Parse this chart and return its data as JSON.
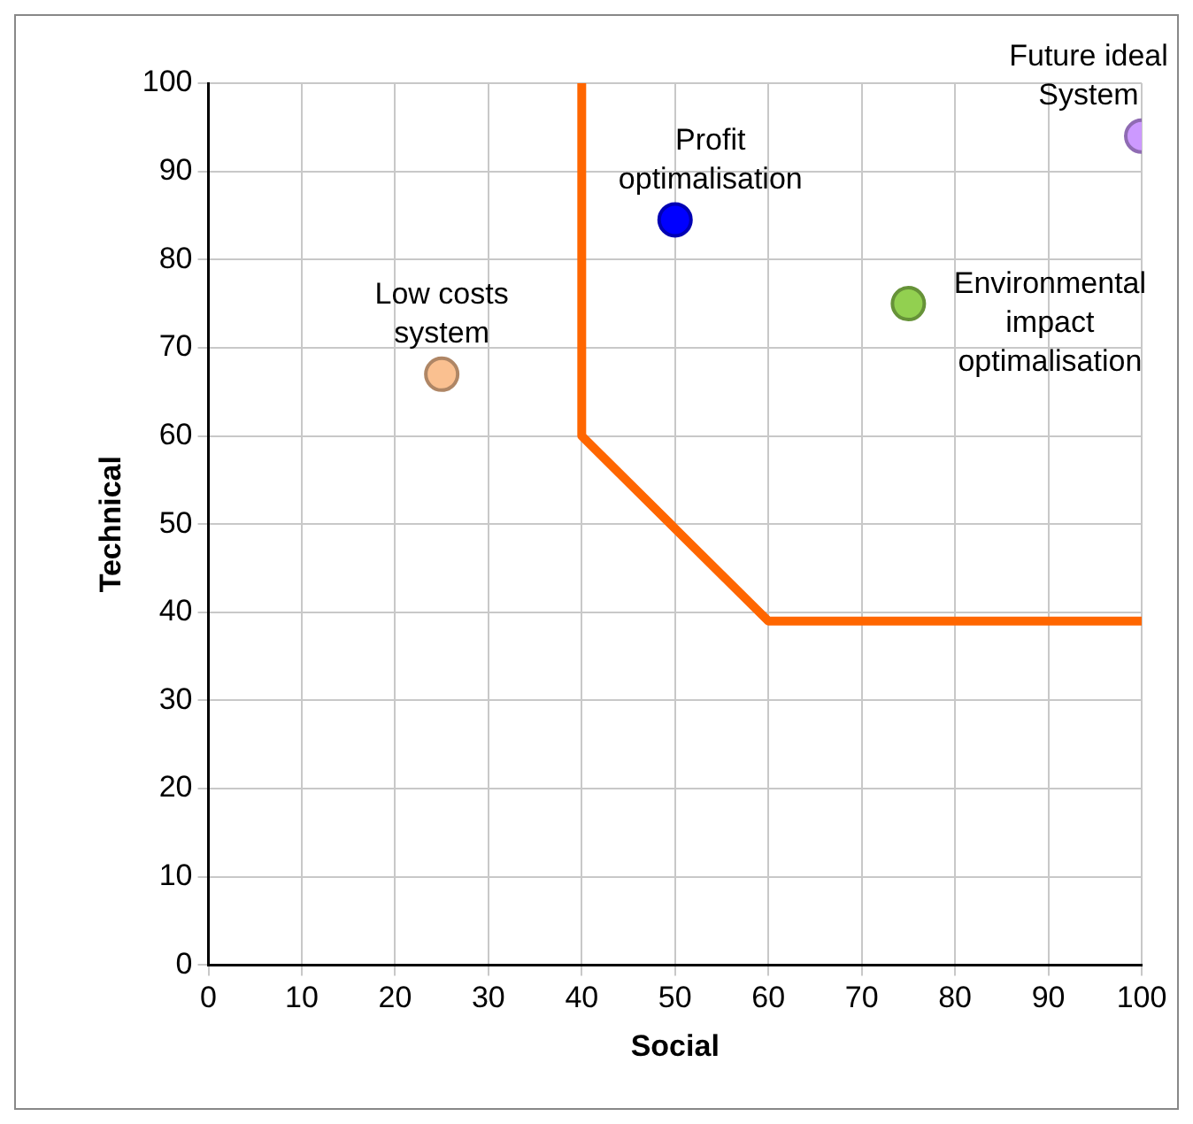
{
  "chart_data": {
    "type": "scatter",
    "xlabel": "Social",
    "ylabel": "Technical",
    "xlim": [
      0,
      100
    ],
    "ylim": [
      0,
      100
    ],
    "xticks": [
      0,
      10,
      20,
      30,
      40,
      50,
      60,
      70,
      80,
      90,
      100
    ],
    "yticks": [
      0,
      10,
      20,
      30,
      40,
      50,
      60,
      70,
      80,
      90,
      100
    ],
    "grid": true,
    "legend": false,
    "marker": "circle",
    "series": [
      {
        "name": "Low costs system",
        "color": "#fac090",
        "x": [
          25
        ],
        "values": [
          67
        ]
      },
      {
        "name": "Profit optimalisation",
        "color": "#0000ff",
        "x": [
          50
        ],
        "values": [
          84.5
        ]
      },
      {
        "name": "Environmental impact optimalisation",
        "color": "#92d050",
        "x": [
          75
        ],
        "values": [
          75
        ]
      },
      {
        "name": "Future ideal System",
        "color": "#cc99ff",
        "x": [
          100
        ],
        "values": [
          94
        ]
      },
      {
        "type": "line",
        "color": "#ff6600",
        "x": [
          40,
          40,
          60,
          100
        ],
        "values": [
          100,
          60,
          39,
          39
        ],
        "marker": "none",
        "line_style": "solid"
      }
    ]
  }
}
